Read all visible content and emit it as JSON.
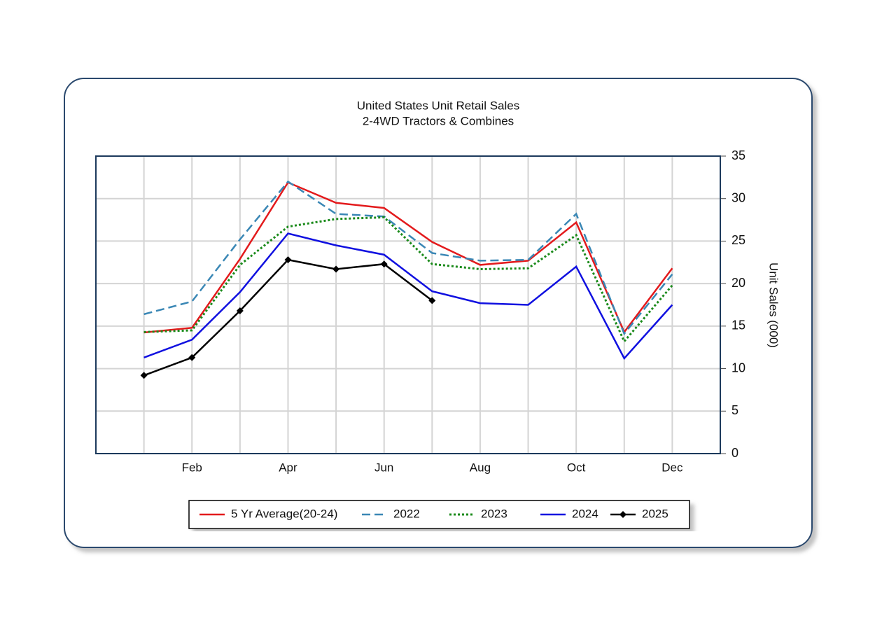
{
  "chart_data": {
    "type": "line",
    "title": "United States Unit Retail Sales",
    "subtitle": "2-4WD Tractors & Combines",
    "y_label": "Unit Sales (000)",
    "categories": [
      null,
      "Feb",
      null,
      "Apr",
      null,
      "Jun",
      null,
      "Aug",
      null,
      "Oct",
      null,
      "Dec"
    ],
    "ylim": [
      0,
      35
    ],
    "yticks": [
      0,
      5,
      10,
      15,
      20,
      25,
      30,
      35
    ],
    "y_axis_side": "right",
    "grid": true,
    "legend": "bottom",
    "series": [
      {
        "name": "5 Yr Average(20-24)",
        "color": "#e31a1c",
        "style": "solid",
        "values": [
          14.25,
          14.8,
          22.9,
          31.9,
          29.5,
          28.9,
          24.9,
          22.2,
          22.7,
          27.2,
          14.3,
          21.8
        ]
      },
      {
        "name": "2022",
        "color": "#3a87b5",
        "style": "dashed",
        "values": [
          16.4,
          17.9,
          25.2,
          32.0,
          28.2,
          27.9,
          23.6,
          22.7,
          22.8,
          28.2,
          14.1,
          21.1
        ]
      },
      {
        "name": "2023",
        "color": "#1a8a1a",
        "style": "dotted",
        "values": [
          14.3,
          14.5,
          22.2,
          26.7,
          27.6,
          27.8,
          22.3,
          21.7,
          21.8,
          25.7,
          13.2,
          19.8
        ]
      },
      {
        "name": "2024",
        "color": "#1010e0",
        "style": "solid",
        "values": [
          11.3,
          13.4,
          19.0,
          25.9,
          24.5,
          23.4,
          19.1,
          17.7,
          17.5,
          22.0,
          11.2,
          17.5
        ]
      },
      {
        "name": "2025",
        "color": "#000000",
        "style": "solid",
        "marker": "diamond",
        "values": [
          9.2,
          11.3,
          16.8,
          22.8,
          21.7,
          22.3,
          18.0,
          null,
          null,
          null,
          null,
          null
        ]
      }
    ]
  }
}
